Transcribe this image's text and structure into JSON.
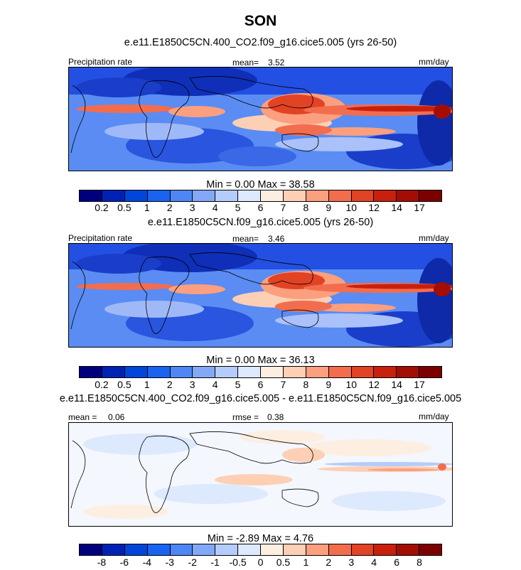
{
  "title": "SON",
  "colors": {
    "precip_scale": [
      "#00007f",
      "#0022b4",
      "#0046da",
      "#1a63f0",
      "#4f86f5",
      "#83a8f8",
      "#b4ccfb",
      "#dde9fd",
      "#fdeee2",
      "#fdcfb4",
      "#fb9f7f",
      "#f26d4e",
      "#e14324",
      "#c9200e",
      "#a30d04",
      "#7d0000"
    ],
    "diff_scale": [
      "#00007f",
      "#0022b4",
      "#0046da",
      "#1a63f0",
      "#4f86f5",
      "#83a8f8",
      "#b4ccfb",
      "#dde9fd",
      "#fdeee2",
      "#fdcfb4",
      "#fb9f7f",
      "#f26d4e",
      "#e14324",
      "#c9200e",
      "#a30d04",
      "#7d0000"
    ]
  },
  "chart_data": [
    {
      "type": "heatmap",
      "title": "e.e11.E1850C5CN.400_CO2.f09_g16.cice5.005 (yrs 26-50)",
      "left_label": "Precipitation rate",
      "center_label": "mean=",
      "center_value": "3.52",
      "units": "mm/day",
      "min_label": "Min =",
      "min_value": "0.00",
      "max_label": "Max =",
      "max_value": "38.58",
      "min": 0.0,
      "max": 38.58,
      "mean": 3.52,
      "colorbar_levels": [
        "0.2",
        "0.5",
        "1",
        "2",
        "3",
        "4",
        "5",
        "6",
        "7",
        "8",
        "9",
        "10",
        "12",
        "14",
        "17"
      ]
    },
    {
      "type": "heatmap",
      "title": "e.e11.E1850C5CN.f09_g16.cice5.005 (yrs 26-50)",
      "left_label": "Precipitation rate",
      "center_label": "mean=",
      "center_value": "3.46",
      "units": "mm/day",
      "min_label": "Min =",
      "min_value": "0.00",
      "max_label": "Max =",
      "max_value": "36.13",
      "min": 0.0,
      "max": 36.13,
      "mean": 3.46,
      "colorbar_levels": [
        "0.2",
        "0.5",
        "1",
        "2",
        "3",
        "4",
        "5",
        "6",
        "7",
        "8",
        "9",
        "10",
        "12",
        "14",
        "17"
      ]
    },
    {
      "type": "heatmap",
      "title": "e.e11.E1850C5CN.400_CO2.f09_g16.cice5.005 - e.e11.E1850C5CN.f09_g16.cice5.005",
      "left_label": "mean =",
      "left_value": "0.06",
      "center_label": "rmse =",
      "center_value": "0.38",
      "units": "mm/day",
      "min_label": "Min =",
      "min_value": "-2.89",
      "max_label": "Max =",
      "max_value": "4.76",
      "min": -2.89,
      "max": 4.76,
      "mean": 0.06,
      "rmse": 0.38,
      "colorbar_levels": [
        "-8",
        "-6",
        "-4",
        "-3",
        "-2",
        "-1",
        "-0.5",
        "0",
        "0.5",
        "1",
        "2",
        "3",
        "4",
        "6",
        "8"
      ]
    }
  ]
}
